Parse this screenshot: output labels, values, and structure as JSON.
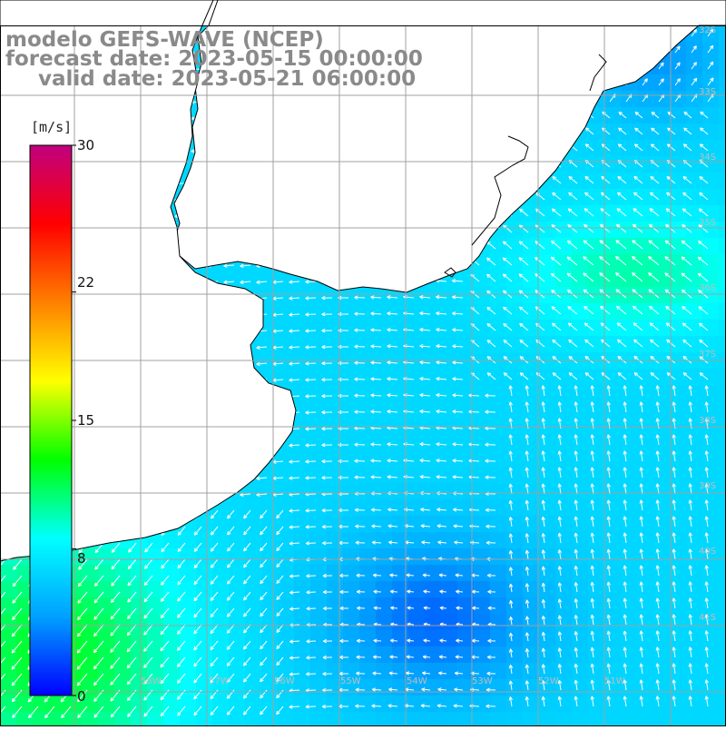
{
  "title": {
    "line1": "modelo GEFS-WAVE (NCEP)",
    "line2": "forecast date: 2023-05-15 00:00:00",
    "line3": "valid date: 2023-05-21 06:00:00"
  },
  "colorbar": {
    "unit": "[m/s]",
    "ticks": [
      "30",
      "22",
      "15",
      "8",
      "0"
    ],
    "tick_values": [
      30,
      22,
      15,
      8,
      0
    ],
    "range": [
      0,
      30
    ],
    "colors": [
      "#0000ff",
      "#00a0ff",
      "#00ffff",
      "#00ff00",
      "#ffff00",
      "#ff8000",
      "#ff0000",
      "#c0007f"
    ]
  },
  "map": {
    "region": "Rio de la Plata / South Atlantic",
    "lat_labels": [
      "32S",
      "33S",
      "34S",
      "35S",
      "36S",
      "37S",
      "38S",
      "39S",
      "40S",
      "41S"
    ],
    "lon_labels": [
      "58W",
      "57W",
      "56W",
      "55W",
      "54W",
      "53W",
      "52W",
      "51W"
    ],
    "land_color": "#ffffff",
    "grid_color": "#a0a0a0",
    "arrow_color": "#ffffff"
  },
  "chart_data": {
    "type": "heatmap",
    "variable": "wind speed",
    "unit": "m/s",
    "vmin": 0,
    "vmax": 30,
    "regions": [
      {
        "area": "southwest corner near coast",
        "speed_ms": 12,
        "direction": "toward SW"
      },
      {
        "area": "northeast offshore (near 35S)",
        "speed_ms": 10,
        "direction": "toward NW"
      },
      {
        "area": "central shelf",
        "speed_ms": 7,
        "direction": "toward W"
      },
      {
        "area": "southeast (near 40S 53W)",
        "speed_ms": 3,
        "direction": "variable"
      },
      {
        "area": "far northeast (near 32S)",
        "speed_ms": 4,
        "direction": "toward NE"
      }
    ]
  }
}
